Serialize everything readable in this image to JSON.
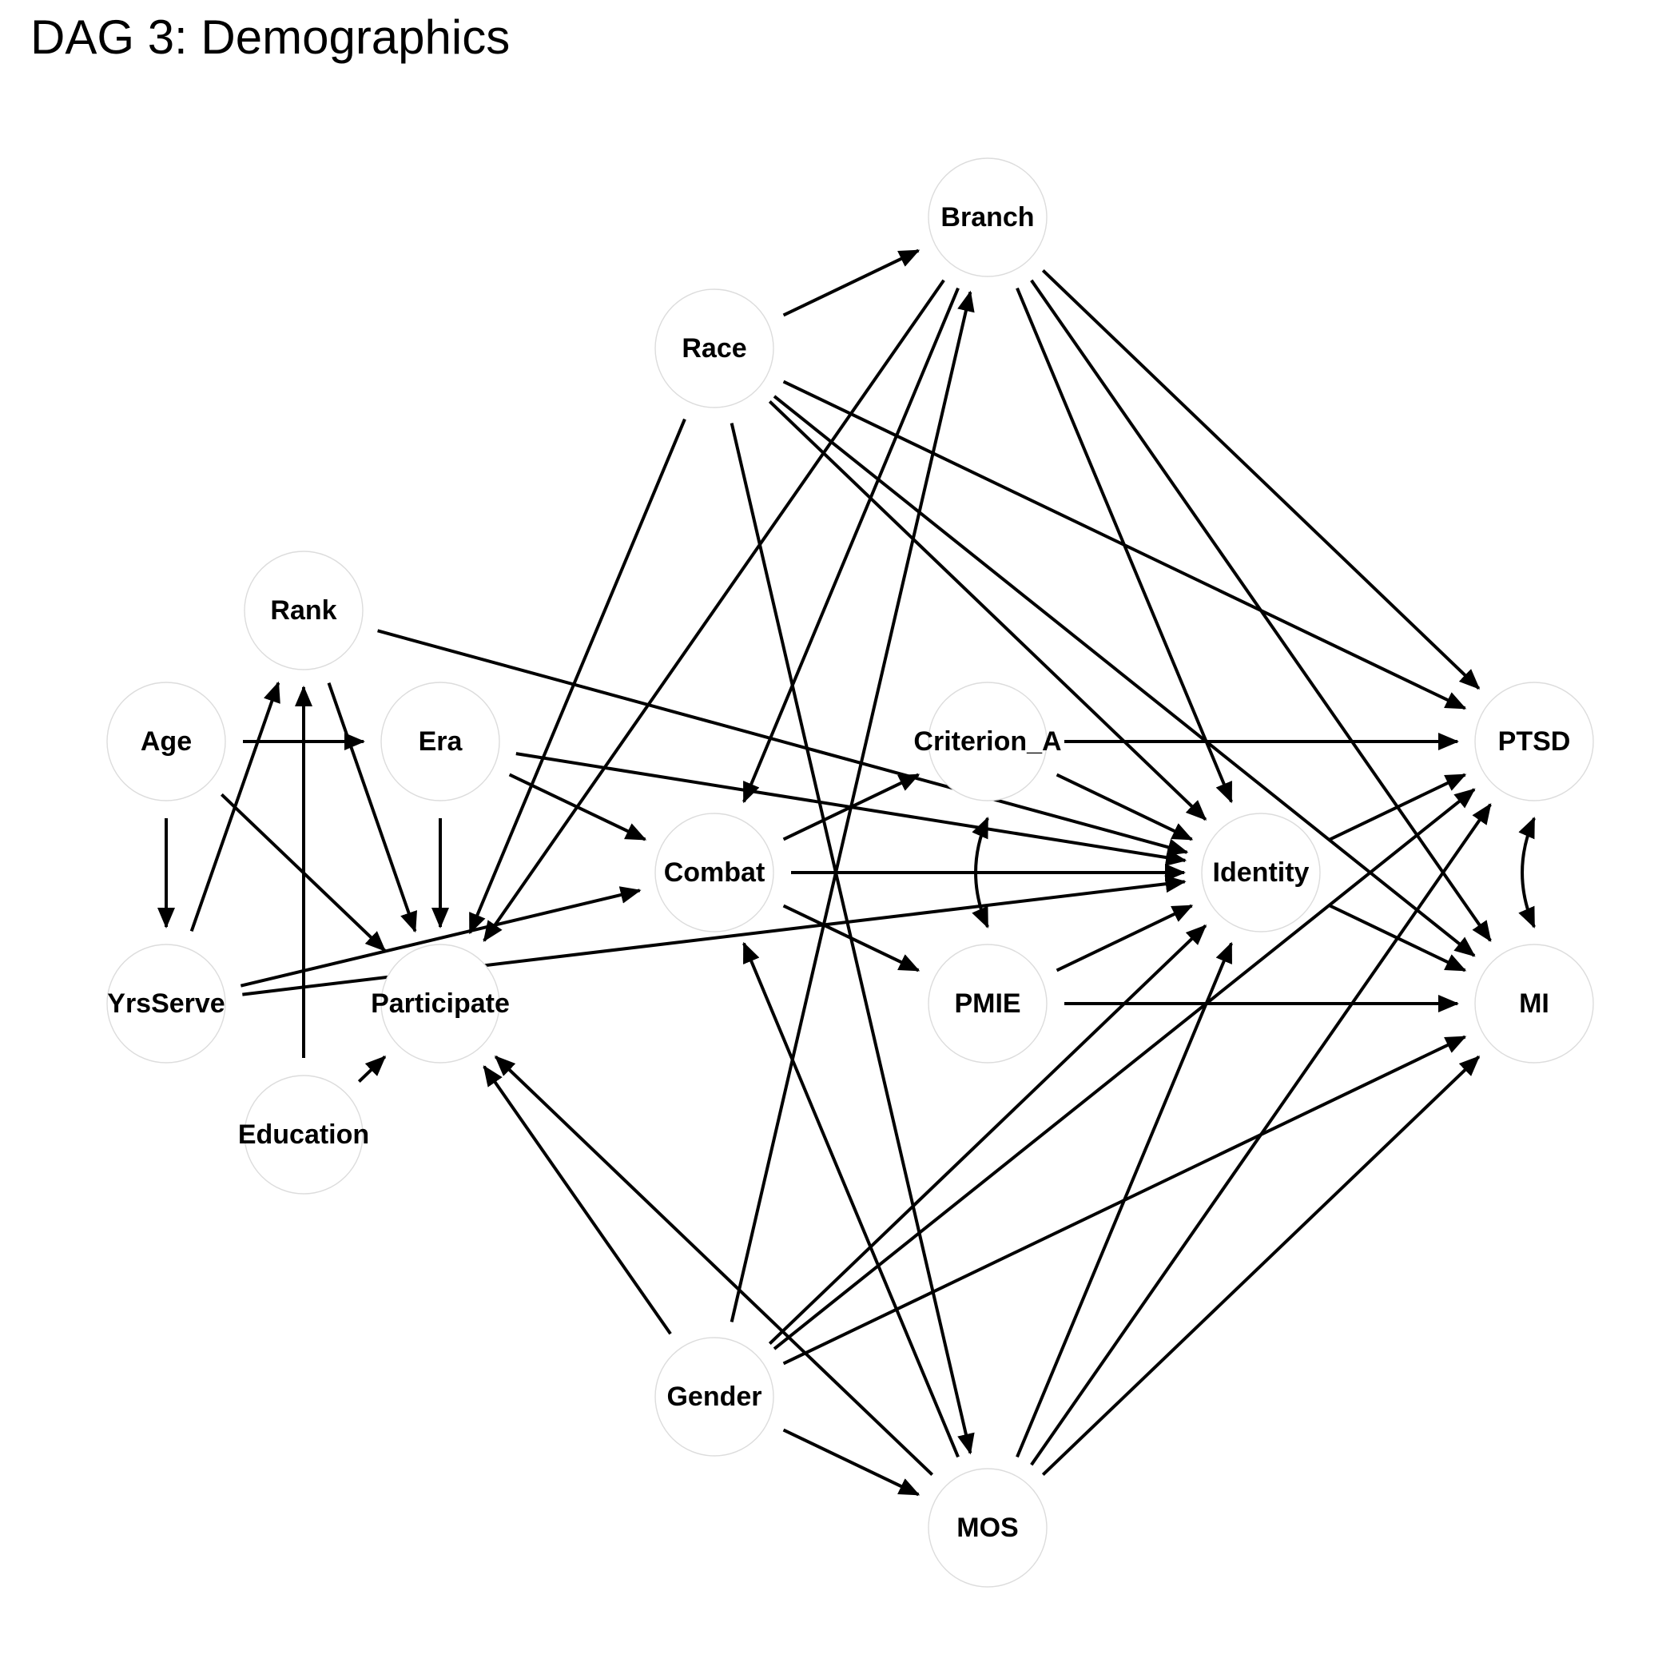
{
  "title": "DAG 3: Demographics",
  "diagram": {
    "nodes": [
      {
        "id": "Branch",
        "label": "Branch"
      },
      {
        "id": "Race",
        "label": "Race"
      },
      {
        "id": "Rank",
        "label": "Rank"
      },
      {
        "id": "Age",
        "label": "Age"
      },
      {
        "id": "Era",
        "label": "Era"
      },
      {
        "id": "Criterion_A",
        "label": "Criterion_A"
      },
      {
        "id": "PTSD",
        "label": "PTSD"
      },
      {
        "id": "Combat",
        "label": "Combat"
      },
      {
        "id": "Identity",
        "label": "Identity"
      },
      {
        "id": "YrsServe",
        "label": "YrsServe"
      },
      {
        "id": "Participate",
        "label": "Participate"
      },
      {
        "id": "PMIE",
        "label": "PMIE"
      },
      {
        "id": "MI",
        "label": "MI"
      },
      {
        "id": "Education",
        "label": "Education"
      },
      {
        "id": "Gender",
        "label": "Gender"
      },
      {
        "id": "MOS",
        "label": "MOS"
      }
    ],
    "edges": [
      {
        "from": "Age",
        "to": "Era"
      },
      {
        "from": "Age",
        "to": "YrsServe"
      },
      {
        "from": "Age",
        "to": "Participate"
      },
      {
        "from": "YrsServe",
        "to": "Rank"
      },
      {
        "from": "Education",
        "to": "Rank"
      },
      {
        "from": "Education",
        "to": "Participate"
      },
      {
        "from": "Rank",
        "to": "Participate"
      },
      {
        "from": "Rank",
        "to": "Identity"
      },
      {
        "from": "Era",
        "to": "Participate"
      },
      {
        "from": "Era",
        "to": "Combat"
      },
      {
        "from": "Era",
        "to": "Identity"
      },
      {
        "from": "YrsServe",
        "to": "Combat"
      },
      {
        "from": "YrsServe",
        "to": "Identity"
      },
      {
        "from": "Race",
        "to": "Branch"
      },
      {
        "from": "Race",
        "to": "Participate"
      },
      {
        "from": "Race",
        "to": "MOS"
      },
      {
        "from": "Race",
        "to": "PTSD"
      },
      {
        "from": "Race",
        "to": "Identity"
      },
      {
        "from": "Race",
        "to": "MI"
      },
      {
        "from": "Branch",
        "to": "Participate"
      },
      {
        "from": "Branch",
        "to": "Combat"
      },
      {
        "from": "Branch",
        "to": "Identity"
      },
      {
        "from": "Branch",
        "to": "PTSD"
      },
      {
        "from": "Branch",
        "to": "MI"
      },
      {
        "from": "Combat",
        "to": "Criterion_A"
      },
      {
        "from": "Combat",
        "to": "Identity"
      },
      {
        "from": "Combat",
        "to": "PMIE"
      },
      {
        "from": "Criterion_A",
        "to": "PTSD"
      },
      {
        "from": "Criterion_A",
        "to": "Identity"
      },
      {
        "from": "Criterion_A",
        "to": "PMIE",
        "bidirected": true
      },
      {
        "from": "PMIE",
        "to": "Identity"
      },
      {
        "from": "PMIE",
        "to": "MI"
      },
      {
        "from": "Identity",
        "to": "PTSD"
      },
      {
        "from": "Identity",
        "to": "MI"
      },
      {
        "from": "PTSD",
        "to": "MI",
        "bidirected": true
      },
      {
        "from": "Gender",
        "to": "Branch"
      },
      {
        "from": "Gender",
        "to": "Participate"
      },
      {
        "from": "Gender",
        "to": "MOS"
      },
      {
        "from": "Gender",
        "to": "Identity"
      },
      {
        "from": "Gender",
        "to": "PTSD"
      },
      {
        "from": "Gender",
        "to": "MI"
      },
      {
        "from": "MOS",
        "to": "Participate"
      },
      {
        "from": "MOS",
        "to": "Combat"
      },
      {
        "from": "MOS",
        "to": "Identity"
      },
      {
        "from": "MOS",
        "to": "PTSD"
      },
      {
        "from": "MOS",
        "to": "MI"
      }
    ]
  }
}
